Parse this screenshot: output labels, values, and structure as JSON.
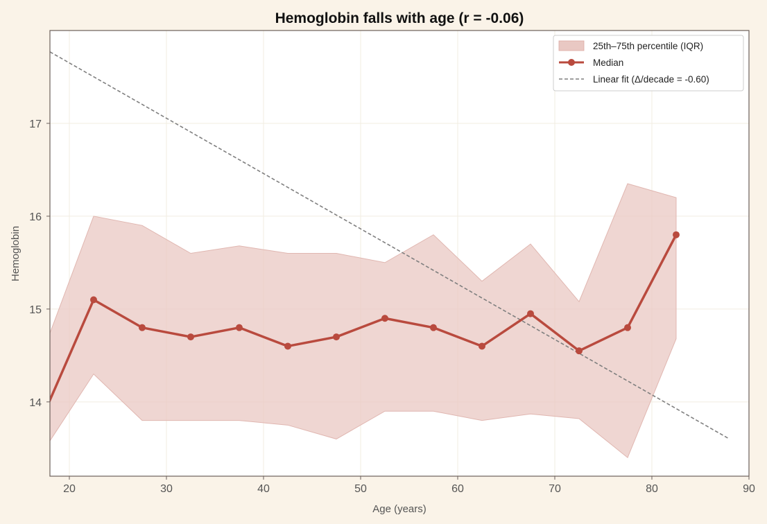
{
  "chart_data": {
    "type": "line",
    "title": "Hemoglobin falls with age (r = -0.06)",
    "xlabel": "Age (years)",
    "ylabel": "Hemoglobin",
    "xlim": [
      18,
      90
    ],
    "ylim": [
      13.2,
      18.0
    ],
    "xticks": [
      20,
      30,
      40,
      50,
      60,
      70,
      80,
      90
    ],
    "yticks": [
      14,
      15,
      16,
      17
    ],
    "grid": true,
    "legend_position": "top-right",
    "colors": {
      "median": "#b94a3e",
      "iqr_fill": "#e9c8c3",
      "fit": "#7f7f7f",
      "background": "#faf3e8",
      "plot_background": "#ffffff"
    },
    "x": [
      17.5,
      22.5,
      27.5,
      32.5,
      37.5,
      42.5,
      47.5,
      52.5,
      57.5,
      62.5,
      67.5,
      72.5,
      77.5,
      82.5
    ],
    "series": [
      {
        "name": "Median",
        "kind": "line-marker",
        "values": [
          13.9,
          15.1,
          14.8,
          14.7,
          14.8,
          14.6,
          14.7,
          14.9,
          14.8,
          14.6,
          14.95,
          14.55,
          14.8,
          15.8
        ]
      },
      {
        "name": "25th–75th percentile (IQR)",
        "kind": "band",
        "lower": [
          13.5,
          14.3,
          13.8,
          13.8,
          13.8,
          13.75,
          13.6,
          13.9,
          13.9,
          13.8,
          13.87,
          13.82,
          13.4,
          14.68
        ],
        "upper": [
          14.6,
          16.0,
          15.9,
          15.6,
          15.68,
          15.6,
          15.6,
          15.5,
          15.8,
          15.3,
          15.7,
          15.08,
          16.35,
          16.2
        ]
      },
      {
        "name": "Linear fit (Δ/decade = -0.60)",
        "kind": "dashed-line",
        "x": [
          18,
          88
        ],
        "values": [
          17.77,
          13.6
        ]
      }
    ]
  }
}
